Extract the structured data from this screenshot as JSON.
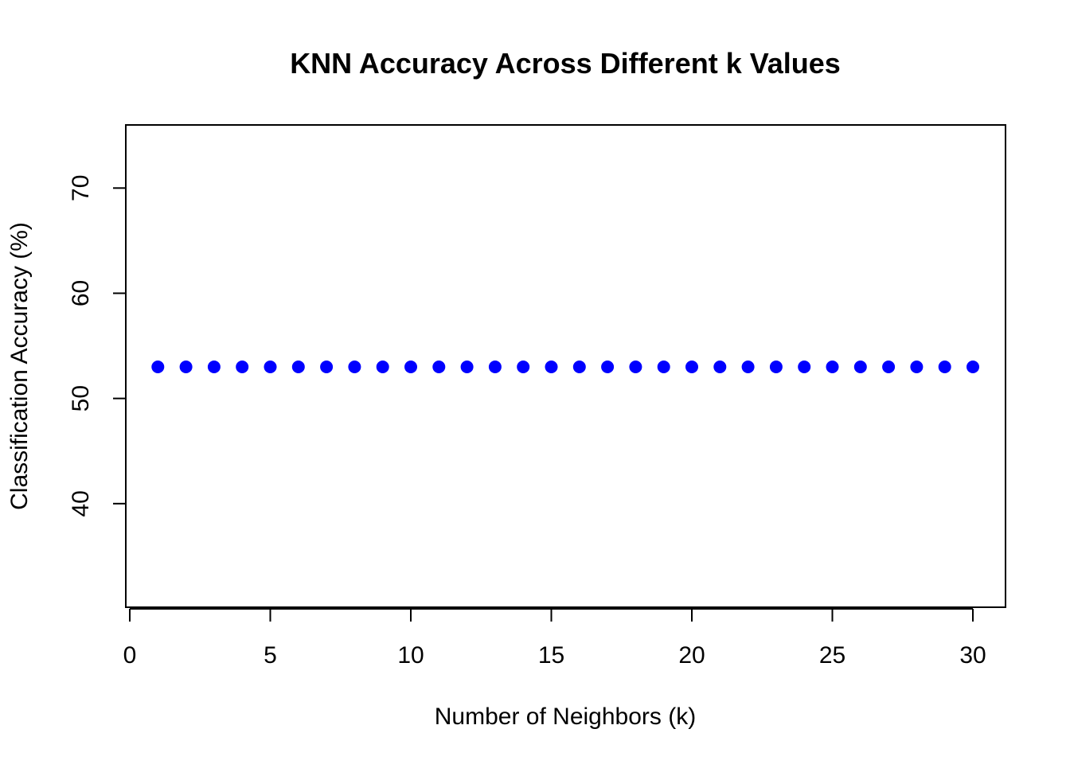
{
  "chart_data": {
    "type": "scatter",
    "title": "KNN Accuracy Across Different k Values",
    "xlabel": "Number of Neighbors (k)",
    "ylabel": "Classification Accuracy (%)",
    "xlim": [
      0,
      31
    ],
    "ylim": [
      30,
      76
    ],
    "x_ticks": [
      0,
      5,
      10,
      15,
      20,
      25,
      30
    ],
    "y_ticks": [
      40,
      50,
      60,
      70
    ],
    "grid": false,
    "legend": "none",
    "point_color": "#0000ff",
    "series": [
      {
        "x": [
          1,
          2,
          3,
          4,
          5,
          6,
          7,
          8,
          9,
          10,
          11,
          12,
          13,
          14,
          15,
          16,
          17,
          18,
          19,
          20,
          21,
          22,
          23,
          24,
          25,
          26,
          27,
          28,
          29,
          30
        ],
        "values": [
          53,
          53,
          53,
          53,
          53,
          53,
          53,
          53,
          53,
          53,
          53,
          53,
          53,
          53,
          53,
          53,
          53,
          53,
          53,
          53,
          53,
          53,
          53,
          53,
          53,
          53,
          53,
          53,
          53,
          53
        ]
      }
    ]
  }
}
